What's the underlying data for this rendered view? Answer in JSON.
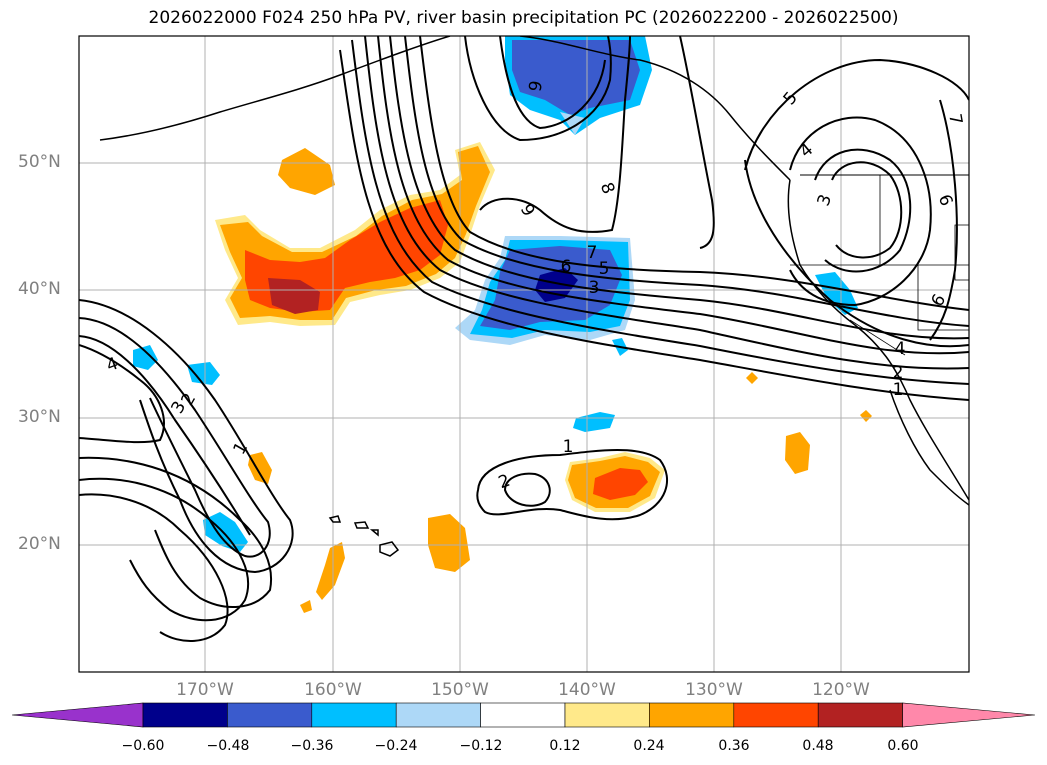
{
  "title": "2026022000 F024 250 hPa PV, river basin precipitation PC (2026022200 - 2026022500)",
  "lat_labels": [
    "50°N",
    "40°N",
    "30°N",
    "20°N"
  ],
  "lon_labels": [
    "170°W",
    "160°W",
    "150°W",
    "140°W",
    "130°W",
    "120°W"
  ],
  "colorbar": {
    "ticks": [
      "−0.60",
      "−0.48",
      "−0.36",
      "−0.24",
      "−0.12",
      "0.12",
      "0.24",
      "0.36",
      "0.48",
      "0.60"
    ],
    "colors": [
      "#9932cc",
      "#00008b",
      "#3a5bcd",
      "#00bfff",
      "#add8f7",
      "#ffffff",
      "#ffe98a",
      "#ffa500",
      "#ff4500",
      "#b22222",
      "#ff88aa"
    ]
  },
  "contour_labels": [
    "6",
    "9",
    "8",
    "7",
    "6",
    "5",
    "3",
    "4",
    "3",
    "2",
    "1",
    "1",
    "2",
    "5",
    "4",
    "3",
    "6",
    "6",
    "4",
    "2",
    "1",
    "7"
  ]
}
